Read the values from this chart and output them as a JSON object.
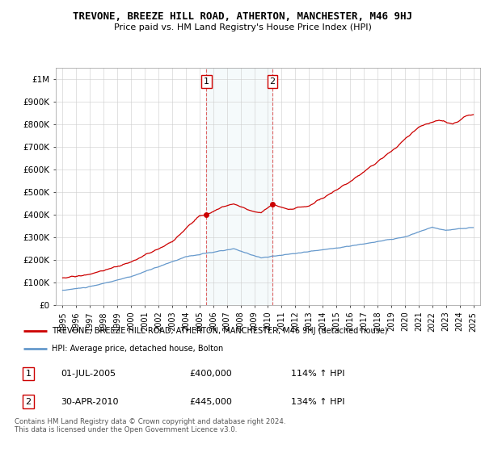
{
  "title": "TREVONE, BREEZE HILL ROAD, ATHERTON, MANCHESTER, M46 9HJ",
  "subtitle": "Price paid vs. HM Land Registry's House Price Index (HPI)",
  "red_label": "TREVONE, BREEZE HILL ROAD, ATHERTON, MANCHESTER, M46 9HJ (detached house)",
  "blue_label": "HPI: Average price, detached house, Bolton",
  "sale1_label": "1",
  "sale1_date": "01-JUL-2005",
  "sale1_price": "£400,000",
  "sale1_hpi": "114% ↑ HPI",
  "sale2_label": "2",
  "sale2_date": "30-APR-2010",
  "sale2_price": "£445,000",
  "sale2_hpi": "134% ↑ HPI",
  "footer": "Contains HM Land Registry data © Crown copyright and database right 2024.\nThis data is licensed under the Open Government Licence v3.0.",
  "red_color": "#cc0000",
  "blue_color": "#6699cc",
  "dashed_color": "#dd5555",
  "sale1_x": 2005.5,
  "sale2_x": 2010.33,
  "sale1_y": 400000,
  "sale2_y": 445000,
  "ylim": [
    0,
    1050000
  ],
  "xlim_start": 1994.5,
  "xlim_end": 2025.5,
  "yticks": [
    0,
    100000,
    200000,
    300000,
    400000,
    500000,
    600000,
    700000,
    800000,
    900000,
    1000000
  ],
  "ytick_labels": [
    "£0",
    "£100K",
    "£200K",
    "£300K",
    "£400K",
    "£500K",
    "£600K",
    "£700K",
    "£800K",
    "£900K",
    "£1M"
  ],
  "xticks": [
    1995,
    1996,
    1997,
    1998,
    1999,
    2000,
    2001,
    2002,
    2003,
    2004,
    2005,
    2006,
    2007,
    2008,
    2009,
    2010,
    2011,
    2012,
    2013,
    2014,
    2015,
    2016,
    2017,
    2018,
    2019,
    2020,
    2021,
    2022,
    2023,
    2024,
    2025
  ]
}
